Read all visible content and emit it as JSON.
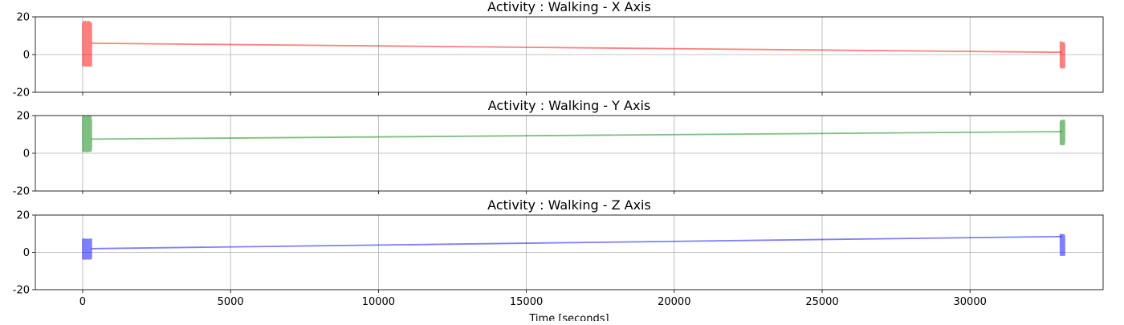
{
  "chart_data": [
    {
      "type": "line",
      "title": "Activity : Walking - X Axis",
      "xlabel": "",
      "ylabel": "",
      "xlim": [
        -1600,
        34500
      ],
      "ylim": [
        -20,
        20
      ],
      "yticks": [
        -20,
        0,
        20
      ],
      "xticks": [],
      "grid": true,
      "color": "#ff0000",
      "line": {
        "x": [
          300,
          33100
        ],
        "y": [
          6,
          1.2
        ]
      },
      "bursts": [
        {
          "x_start": 0,
          "x_end": 300,
          "y_min": -6.5,
          "y_max": 18,
          "samples": 300
        },
        {
          "x_start": 33050,
          "x_end": 33200,
          "y_min": -7.5,
          "y_max": 7,
          "samples": 120
        }
      ]
    },
    {
      "type": "line",
      "title": "Activity : Walking - Y Axis",
      "xlabel": "",
      "ylabel": "",
      "xlim": [
        -1600,
        34500
      ],
      "ylim": [
        -20,
        20
      ],
      "yticks": [
        -20,
        0,
        20
      ],
      "xticks": [],
      "grid": true,
      "color": "#008000",
      "line": {
        "x": [
          300,
          33100
        ],
        "y": [
          7.5,
          11.5
        ]
      },
      "bursts": [
        {
          "x_start": 0,
          "x_end": 300,
          "y_min": 0.5,
          "y_max": 20,
          "samples": 300
        },
        {
          "x_start": 33050,
          "x_end": 33200,
          "y_min": 4,
          "y_max": 18,
          "samples": 120
        }
      ]
    },
    {
      "type": "line",
      "title": "Activity : Walking - Z Axis",
      "xlabel": "Time [seconds]",
      "ylabel": "",
      "xlim": [
        -1600,
        34500
      ],
      "ylim": [
        -20,
        20
      ],
      "yticks": [
        -20,
        0,
        20
      ],
      "xticks": [
        0,
        5000,
        10000,
        15000,
        20000,
        25000,
        30000
      ],
      "grid": true,
      "color": "#0000ff",
      "line": {
        "x": [
          300,
          33100
        ],
        "y": [
          2,
          8.5
        ]
      },
      "bursts": [
        {
          "x_start": 0,
          "x_end": 300,
          "y_min": -4,
          "y_max": 7.5,
          "samples": 300
        },
        {
          "x_start": 33050,
          "x_end": 33200,
          "y_min": -2,
          "y_max": 10,
          "samples": 120
        }
      ]
    }
  ]
}
